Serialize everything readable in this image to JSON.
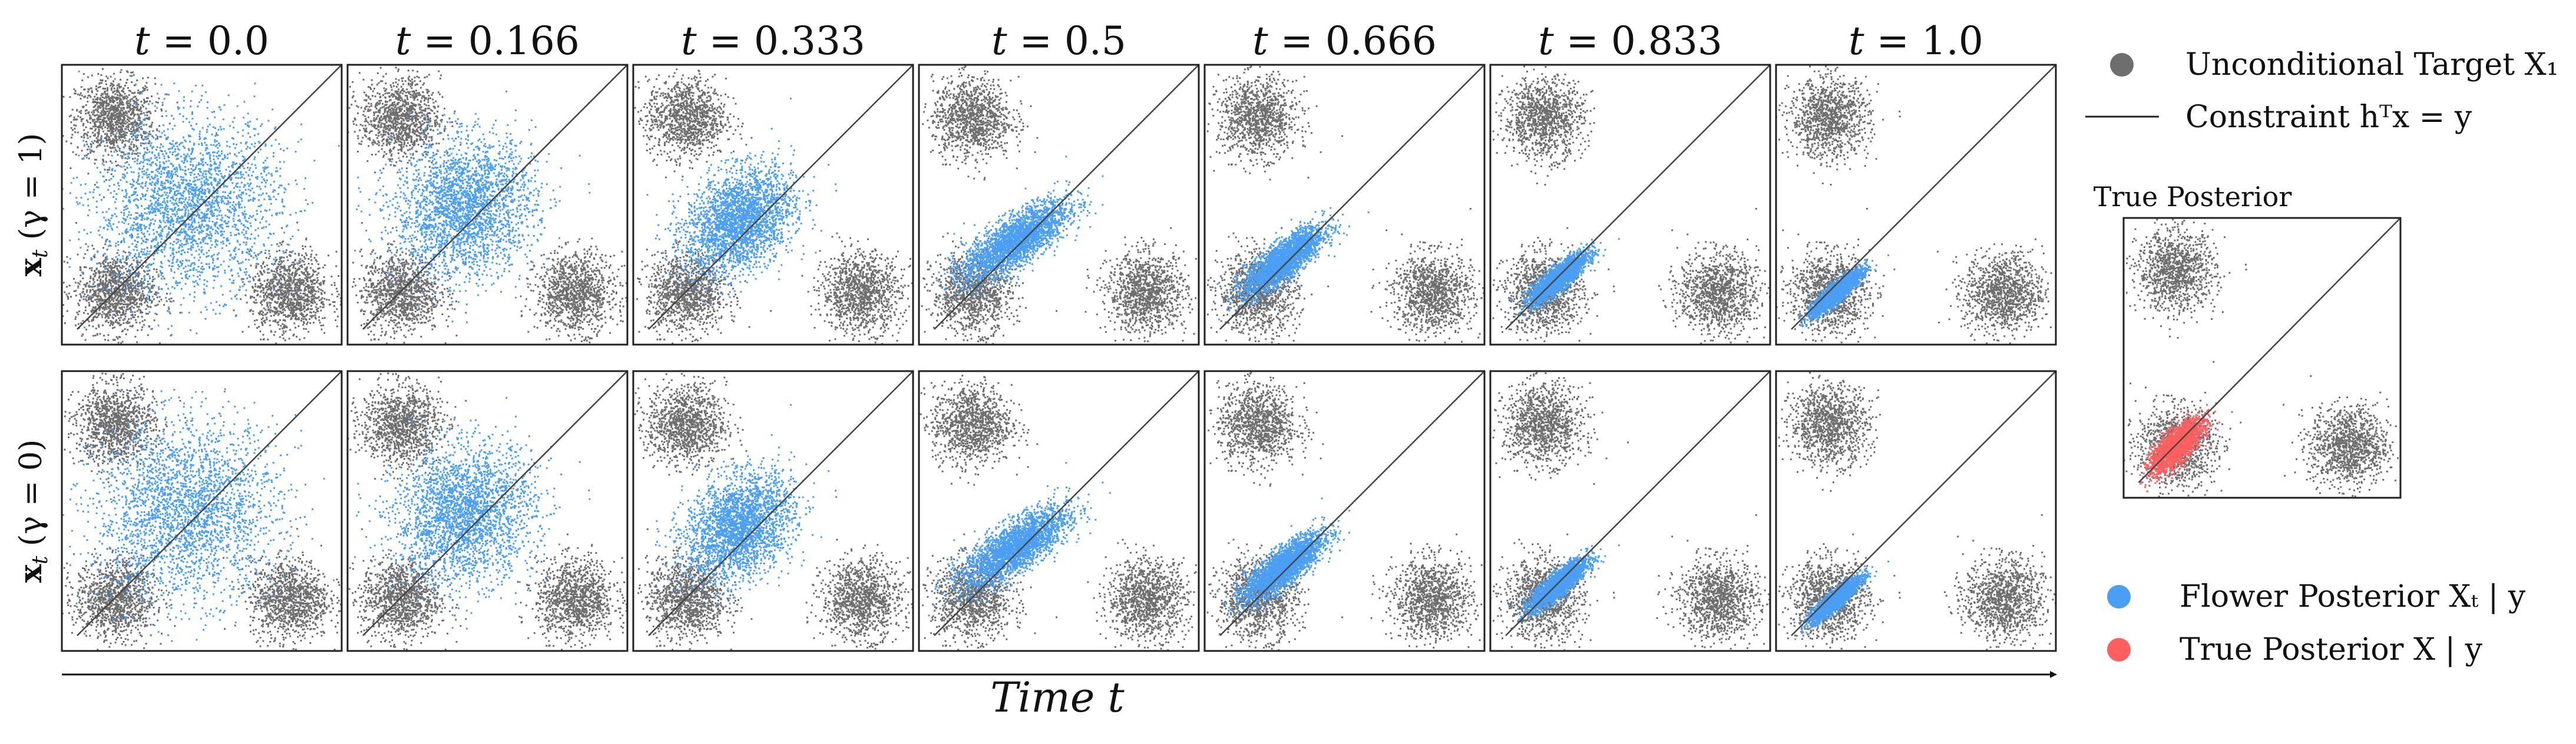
{
  "chart_data": {
    "type": "scatter",
    "time_points": [
      "0.0",
      "0.166",
      "0.333",
      "0.5",
      "0.666",
      "0.833",
      "1.0"
    ],
    "t_symbol": "t",
    "rows": [
      {
        "label_var": "x",
        "label_sub": "t",
        "label_gamma": "(γ = 1)",
        "gamma": 1
      },
      {
        "label_var": "x",
        "label_sub": "t",
        "label_gamma": "(γ = 0)",
        "gamma": 0
      }
    ],
    "xlabel": "Time t",
    "xlim": [
      -3.2,
      3.2
    ],
    "ylim": [
      -3.2,
      3.2
    ],
    "target_clusters": [
      {
        "x": -2.0,
        "y": 2.0,
        "std": 0.45
      },
      {
        "x": -2.0,
        "y": -2.0,
        "std": 0.45
      },
      {
        "x": 2.0,
        "y": -2.0,
        "std": 0.45
      }
    ],
    "constraint_line": {
      "slope": 1,
      "intercept": 0
    },
    "flower_posterior_params": [
      {
        "t": 0.0,
        "mean": [
          -0.35,
          0.0
        ],
        "std": [
          1.05,
          1.0
        ],
        "rho": 0.05
      },
      {
        "t": 0.166,
        "mean": [
          -0.55,
          -0.05
        ],
        "std": [
          0.8,
          0.78
        ],
        "rho": 0.1
      },
      {
        "t": 0.333,
        "mean": [
          -0.8,
          -0.35
        ],
        "std": [
          0.62,
          0.6
        ],
        "rho": 0.3
      },
      {
        "t": 0.5,
        "mean": [
          -1.0,
          -0.8
        ],
        "std": [
          0.6,
          0.45
        ],
        "rho": 0.75
      },
      {
        "t": 0.666,
        "mean": [
          -1.4,
          -1.25
        ],
        "std": [
          0.45,
          0.38
        ],
        "rho": 0.8
      },
      {
        "t": 0.833,
        "mean": [
          -1.65,
          -1.65
        ],
        "std": [
          0.32,
          0.28
        ],
        "rho": 0.85
      },
      {
        "t": 1.0,
        "mean": [
          -1.85,
          -2.0
        ],
        "std": [
          0.28,
          0.25
        ],
        "rho": 0.9
      }
    ],
    "true_posterior": {
      "mean": [
        -2.0,
        -2.0
      ],
      "std": [
        0.3,
        0.3
      ],
      "rho": 0.75
    },
    "legend": {
      "target": "Unconditional Target X₁",
      "constraint": "Constraint hᵀx = y",
      "flower": "Flower Posterior Xₜ | y",
      "true": "True Posterior X | y"
    },
    "inset_title": "True Posterior",
    "colors": {
      "target": "#6e6e6e",
      "flower": "#4a9ff5",
      "true": "#ff5f5f",
      "line": "#444444",
      "frame": "#222222"
    }
  }
}
